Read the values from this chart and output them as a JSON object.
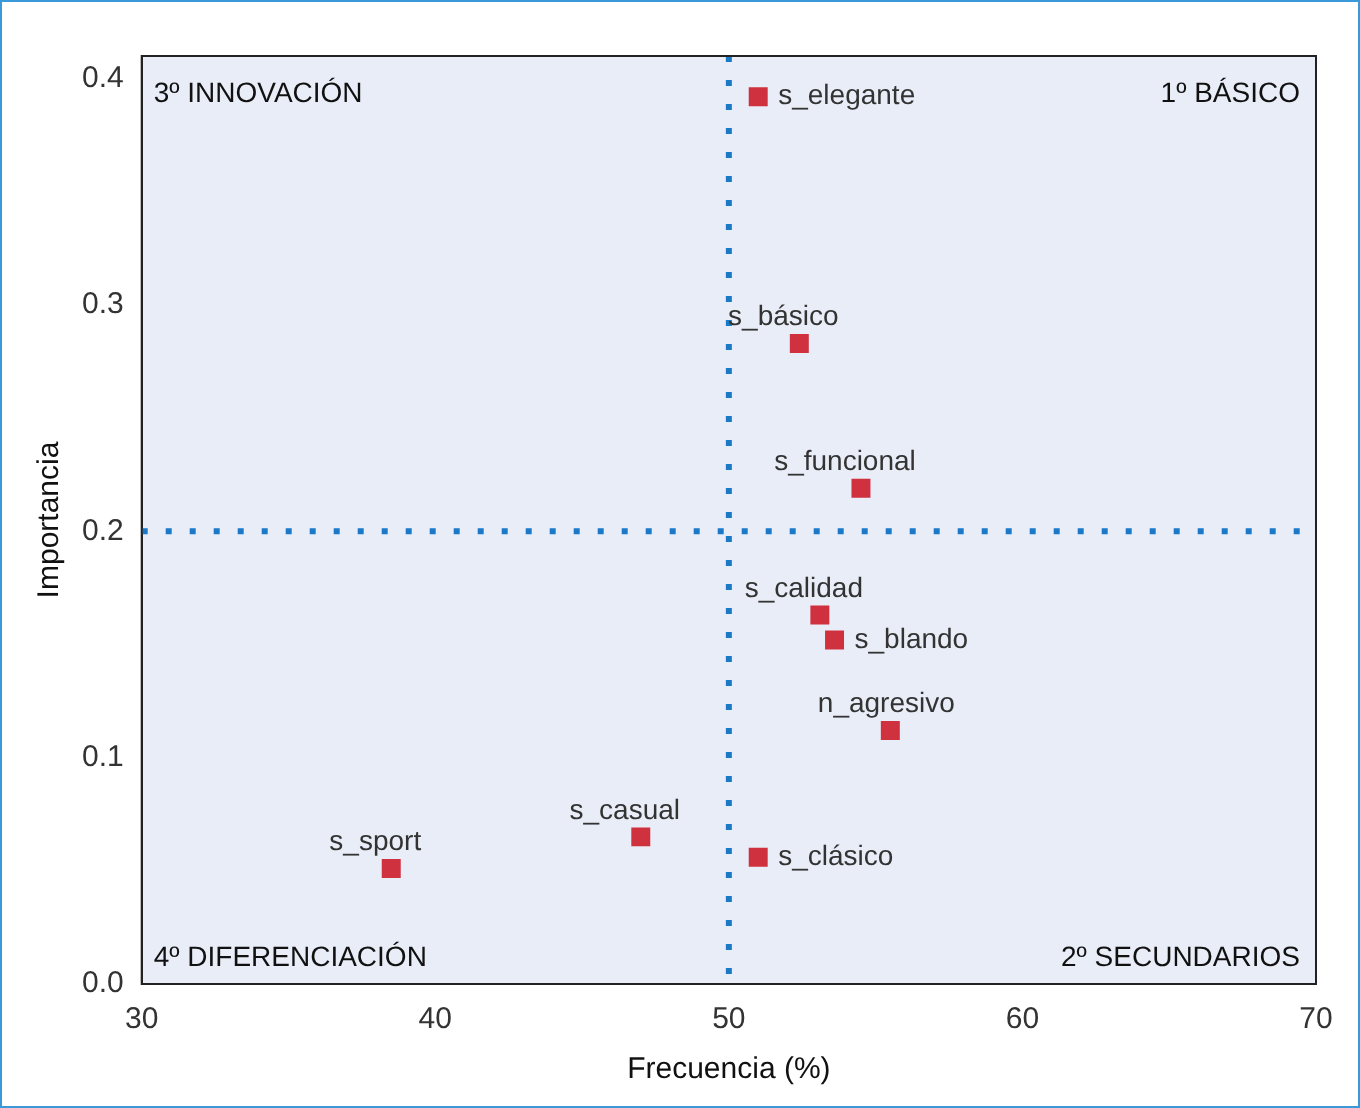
{
  "chart_data": {
    "type": "scatter",
    "xlabel": "Frecuencia (%)",
    "ylabel": "Importancia",
    "series": [
      {
        "color": "#d0313f",
        "x": [
          51.0,
          52.4,
          54.5,
          53.1,
          53.6,
          55.5,
          47.0,
          38.5,
          51.0
        ],
        "values": [
          0.392,
          0.283,
          0.219,
          0.163,
          0.152,
          0.112,
          0.065,
          0.051,
          0.056
        ]
      }
    ],
    "marker": "square",
    "grid": false,
    "legend": false,
    "xlim": [
      30,
      70
    ],
    "xticks": [
      30,
      40,
      50,
      60,
      70
    ],
    "ylim": [
      0,
      0.41
    ],
    "yticks": [
      {
        "value": 0,
        "label": "0.0"
      },
      {
        "value": 0.1,
        "label": "0.1"
      },
      {
        "value": 0.2,
        "label": "0.2"
      },
      {
        "value": 0.3,
        "label": "0.3"
      },
      {
        "value": 0.4,
        "label": "0.4"
      }
    ],
    "ref_lines": [
      {
        "axis": "x",
        "value": 50,
        "color": "#1a7ac7",
        "line_style": "dotted"
      },
      {
        "axis": "y",
        "value": 0.2,
        "color": "#1a7ac7",
        "line_style": "dotted"
      }
    ],
    "annotations": [
      {
        "text": "s_elegante",
        "x": 51.0,
        "y": 0.392
      },
      {
        "text": "s_básico",
        "x": 52.4,
        "y": 0.283
      },
      {
        "text": "s_funcional",
        "x": 54.5,
        "y": 0.219
      },
      {
        "text": "s_calidad",
        "x": 53.1,
        "y": 0.163
      },
      {
        "text": "s_blando",
        "x": 53.6,
        "y": 0.152
      },
      {
        "text": "n_agresivo",
        "x": 55.5,
        "y": 0.112
      },
      {
        "text": "s_casual",
        "x": 47.0,
        "y": 0.065
      },
      {
        "text": "s_sport",
        "x": 38.5,
        "y": 0.051
      },
      {
        "text": "s_clásico",
        "x": 51.0,
        "y": 0.056
      },
      "3º INNOVACIÓN",
      "1º BÁSICO",
      "4º DIFERENCIACIÓN",
      "2º SECUNDARIOS"
    ]
  }
}
